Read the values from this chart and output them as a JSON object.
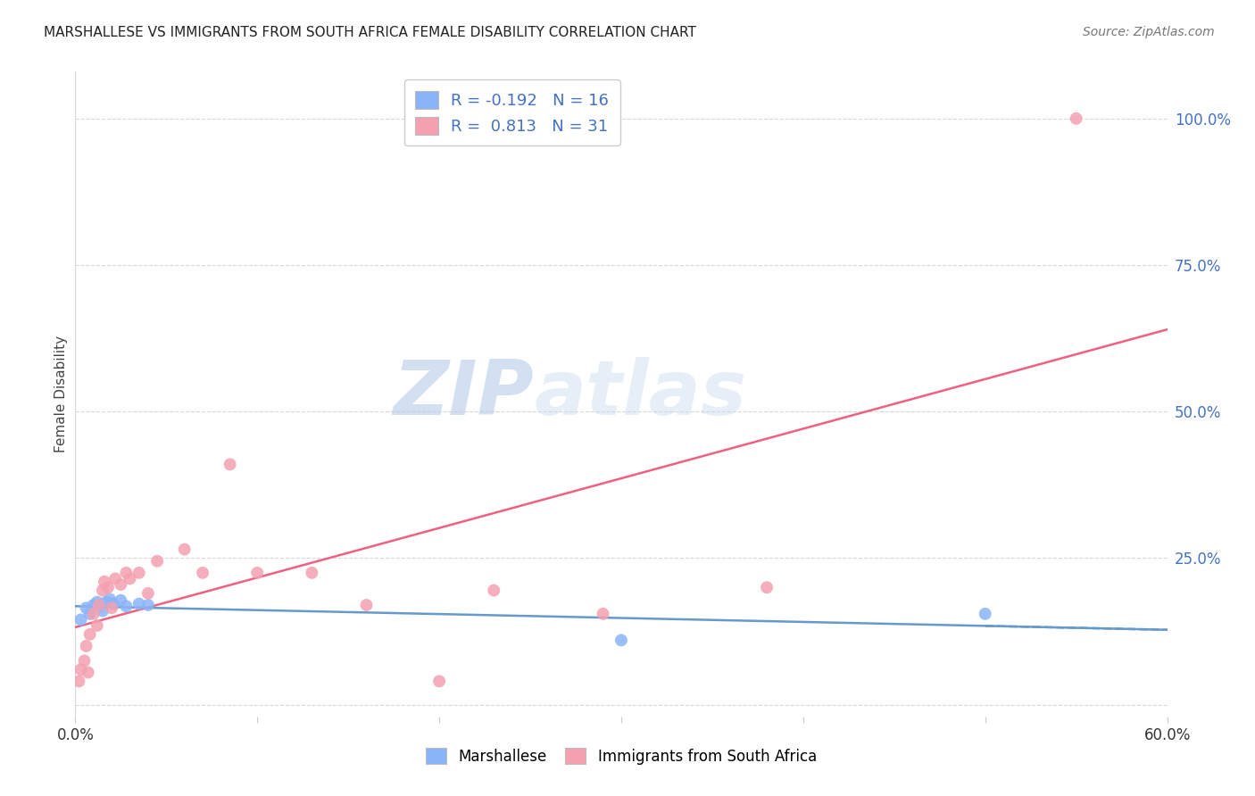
{
  "title": "MARSHALLESE VS IMMIGRANTS FROM SOUTH AFRICA FEMALE DISABILITY CORRELATION CHART",
  "source": "Source: ZipAtlas.com",
  "ylabel": "Female Disability",
  "xlim": [
    0.0,
    0.6
  ],
  "ylim": [
    -0.02,
    1.08
  ],
  "blue_R": -0.192,
  "blue_N": 16,
  "pink_R": 0.813,
  "pink_N": 31,
  "marshallese_x": [
    0.003,
    0.006,
    0.008,
    0.01,
    0.012,
    0.013,
    0.015,
    0.017,
    0.019,
    0.021,
    0.025,
    0.028,
    0.035,
    0.04,
    0.3,
    0.5
  ],
  "marshallese_y": [
    0.145,
    0.165,
    0.155,
    0.17,
    0.175,
    0.168,
    0.16,
    0.175,
    0.18,
    0.172,
    0.178,
    0.168,
    0.172,
    0.17,
    0.11,
    0.155
  ],
  "southafrica_x": [
    0.002,
    0.003,
    0.005,
    0.006,
    0.007,
    0.008,
    0.01,
    0.012,
    0.013,
    0.015,
    0.016,
    0.018,
    0.02,
    0.022,
    0.025,
    0.028,
    0.03,
    0.035,
    0.04,
    0.045,
    0.06,
    0.07,
    0.085,
    0.1,
    0.13,
    0.16,
    0.2,
    0.23,
    0.29,
    0.38,
    0.55
  ],
  "southafrica_y": [
    0.04,
    0.06,
    0.075,
    0.1,
    0.055,
    0.12,
    0.155,
    0.135,
    0.17,
    0.195,
    0.21,
    0.2,
    0.165,
    0.215,
    0.205,
    0.225,
    0.215,
    0.225,
    0.19,
    0.245,
    0.265,
    0.225,
    0.41,
    0.225,
    0.225,
    0.17,
    0.04,
    0.195,
    0.155,
    0.2,
    1.0
  ],
  "blue_color": "#8ab4f8",
  "pink_color": "#f4a0b0",
  "blue_line_color": "#6699cc",
  "pink_line_color": "#f06080",
  "bg_color": "#ffffff",
  "watermark_color": "#c8d8f0",
  "legend_blue_label_r": "R = -0.192",
  "legend_blue_label_n": "N = 16",
  "legend_pink_label_r": "R =  0.813",
  "legend_pink_label_n": "N = 31",
  "grid_color": "#d8d8d8",
  "legend_bottom_marshallese": "Marshallese",
  "legend_bottom_southafrica": "Immigrants from South Africa"
}
